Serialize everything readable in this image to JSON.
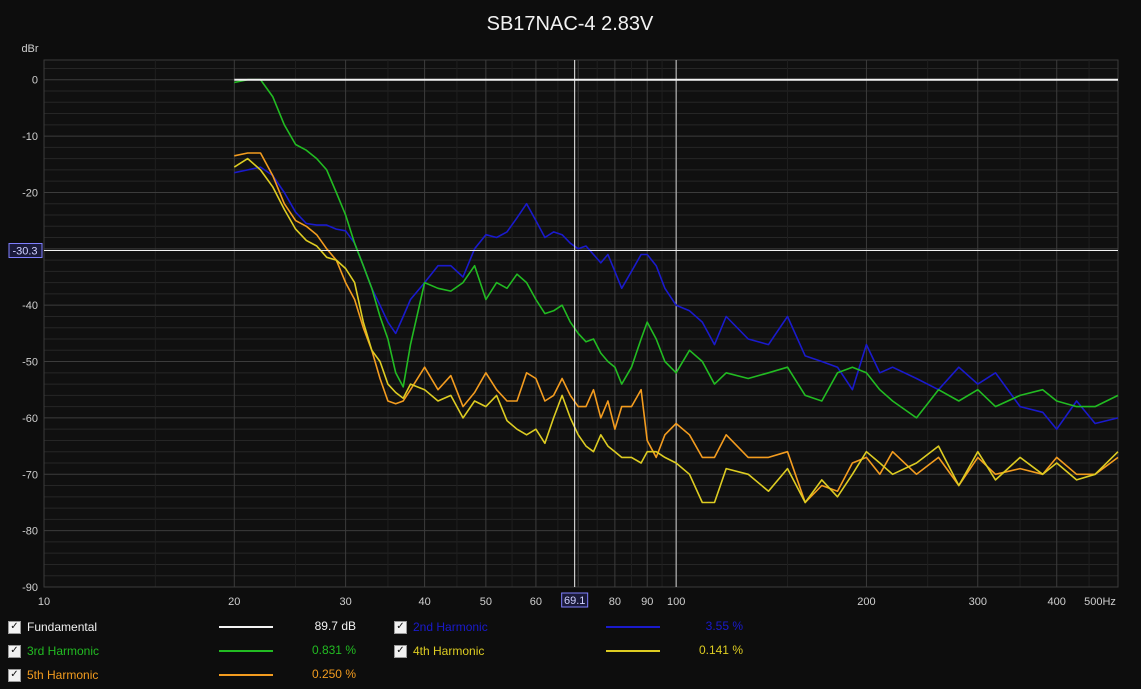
{
  "chart_data": {
    "type": "line",
    "title": "SB17NAC-4 2.83V",
    "ylabel": "dBr",
    "xscale": "log",
    "xlim": [
      10,
      500
    ],
    "ylim": [
      -90,
      10
    ],
    "x_ticks": [
      10,
      20,
      30,
      40,
      50,
      60,
      70,
      80,
      90,
      100,
      200,
      300,
      400,
      500
    ],
    "x_tick_labels": [
      "10",
      "20",
      "30",
      "40",
      "50",
      "60",
      "",
      "80",
      "90",
      "100",
      "200",
      "300",
      "400",
      "500Hz"
    ],
    "y_ticks": [
      0,
      -10,
      -20,
      -30,
      -40,
      -50,
      -60,
      -70,
      -80,
      -90
    ],
    "y_tick_labels": [
      "0",
      "-10",
      "-20",
      "-30",
      "-40",
      "-50",
      "-60",
      "-70",
      "-80",
      "-90"
    ],
    "grid": true,
    "cursor": {
      "x": 69.1,
      "y": -30.3,
      "x_label": "69.1",
      "y_label": "-30.3"
    },
    "vertical_marker_x": 100,
    "series": [
      {
        "name": "Fundamental",
        "color": "#f2f2f2",
        "legend_value": "89.7 dB",
        "x": [
          20,
          21,
          22,
          25,
          30,
          50,
          100,
          200,
          300,
          400,
          500
        ],
        "y": [
          0,
          0,
          0,
          0,
          0,
          0,
          0,
          0,
          0,
          0,
          0
        ]
      },
      {
        "name": "2nd Harmonic",
        "color": "#1a1acc",
        "legend_value": "3.55 %",
        "x": [
          20,
          21,
          22,
          23,
          24,
          25,
          26,
          27,
          28,
          29,
          30,
          31,
          32,
          33,
          34,
          35,
          36,
          37,
          38,
          40,
          42,
          44,
          46,
          48,
          50,
          52,
          54,
          56,
          58,
          60,
          62,
          64,
          66,
          68,
          70,
          72,
          74,
          76,
          78,
          80,
          82,
          85,
          88,
          90,
          93,
          96,
          100,
          105,
          110,
          115,
          120,
          130,
          140,
          150,
          160,
          170,
          180,
          190,
          200,
          210,
          220,
          240,
          260,
          280,
          300,
          320,
          350,
          380,
          400,
          430,
          460,
          500
        ],
        "y": [
          -16.5,
          -16,
          -15.5,
          -17,
          -20,
          -23.5,
          -25.5,
          -25.8,
          -25.8,
          -26.5,
          -26.8,
          -29,
          -33,
          -37,
          -40,
          -43,
          -45,
          -42,
          -39,
          -36,
          -33,
          -33,
          -35,
          -30,
          -27.5,
          -28,
          -27,
          -24.5,
          -22,
          -25,
          -28,
          -27,
          -27.5,
          -29,
          -30,
          -29.5,
          -31,
          -32.5,
          -31,
          -34,
          -37,
          -34,
          -31,
          -31,
          -33,
          -37,
          -40,
          -41,
          -43,
          -47,
          -42,
          -46,
          -47,
          -42,
          -49,
          -50,
          -51,
          -55,
          -47,
          -52,
          -51,
          -53,
          -55,
          -51,
          -54,
          -52,
          -58,
          -59,
          -62,
          -57,
          -61,
          -60
        ]
      },
      {
        "name": "3rd Harmonic",
        "color": "#22bb22",
        "legend_value": "0.831 %",
        "x": [
          20,
          21,
          22,
          23,
          24,
          25,
          26,
          27,
          28,
          29,
          30,
          31,
          32,
          33,
          34,
          35,
          36,
          37,
          38,
          40,
          42,
          44,
          46,
          48,
          50,
          52,
          54,
          56,
          58,
          60,
          62,
          64,
          66,
          68,
          70,
          72,
          74,
          76,
          78,
          80,
          82,
          85,
          88,
          90,
          93,
          96,
          100,
          105,
          110,
          115,
          120,
          130,
          140,
          150,
          160,
          170,
          180,
          190,
          200,
          210,
          220,
          240,
          260,
          280,
          300,
          320,
          350,
          380,
          400,
          430,
          460,
          500
        ],
        "y": [
          -0.5,
          0,
          0,
          -3,
          -8,
          -11.5,
          -12.5,
          -14,
          -16,
          -20,
          -24,
          -29,
          -33,
          -37,
          -42,
          -46,
          -52,
          -54.5,
          -47,
          -36,
          -37,
          -37.5,
          -36,
          -33,
          -39,
          -36,
          -37,
          -34.5,
          -36,
          -39,
          -41.5,
          -41,
          -40,
          -43,
          -45,
          -46.5,
          -46,
          -48.5,
          -50,
          -51,
          -54,
          -51,
          -46,
          -43,
          -46,
          -50,
          -52,
          -48,
          -50,
          -54,
          -52,
          -53,
          -52,
          -51,
          -56,
          -57,
          -52,
          -51,
          -52,
          -55,
          -57,
          -60,
          -55,
          -57,
          -55,
          -58,
          -56,
          -55,
          -57,
          -58,
          -58,
          -56
        ]
      },
      {
        "name": "4th Harmonic",
        "color": "#ddcc22",
        "legend_value": "0.141 %",
        "x": [
          20,
          21,
          22,
          23,
          24,
          25,
          26,
          27,
          28,
          29,
          30,
          31,
          32,
          33,
          34,
          35,
          36,
          37,
          38,
          40,
          42,
          44,
          46,
          48,
          50,
          52,
          54,
          56,
          58,
          60,
          62,
          64,
          66,
          68,
          70,
          72,
          74,
          76,
          78,
          80,
          82,
          85,
          88,
          90,
          93,
          96,
          100,
          105,
          110,
          115,
          120,
          130,
          140,
          150,
          160,
          170,
          180,
          190,
          200,
          210,
          220,
          240,
          260,
          280,
          300,
          320,
          350,
          380,
          400,
          430,
          460,
          500
        ],
        "y": [
          -15.5,
          -14,
          -16,
          -19,
          -23,
          -26.5,
          -28.5,
          -29.5,
          -31.5,
          -32,
          -33.5,
          -36,
          -43,
          -48,
          -50,
          -54,
          -55.5,
          -56.5,
          -54,
          -55,
          -57,
          -56,
          -60,
          -57,
          -58,
          -56,
          -60.5,
          -62,
          -63,
          -62,
          -64.5,
          -60,
          -56,
          -60,
          -63,
          -65,
          -66,
          -63,
          -65,
          -66,
          -67,
          -67,
          -68,
          -66,
          -66,
          -67,
          -68,
          -70,
          -75,
          -75,
          -69,
          -70,
          -73,
          -69,
          -75,
          -71,
          -74,
          -70,
          -66,
          -68,
          -70,
          -68,
          -65,
          -72,
          -66,
          -71,
          -67,
          -70,
          -68,
          -71,
          -70,
          -66
        ]
      },
      {
        "name": "5th Harmonic",
        "color": "#f39c1f",
        "legend_value": "0.250 %",
        "x": [
          20,
          21,
          22,
          23,
          24,
          25,
          26,
          27,
          28,
          29,
          30,
          31,
          32,
          33,
          34,
          35,
          36,
          37,
          38,
          40,
          42,
          44,
          46,
          48,
          50,
          52,
          54,
          56,
          58,
          60,
          62,
          64,
          66,
          68,
          70,
          72,
          74,
          76,
          78,
          80,
          82,
          85,
          88,
          90,
          93,
          96,
          100,
          105,
          110,
          115,
          120,
          130,
          140,
          150,
          160,
          170,
          180,
          190,
          200,
          210,
          220,
          240,
          260,
          280,
          300,
          320,
          350,
          380,
          400,
          430,
          460,
          500
        ],
        "y": [
          -13.5,
          -13,
          -13,
          -17,
          -22,
          -25,
          -26,
          -27.5,
          -30,
          -32,
          -36,
          -39,
          -44,
          -48,
          -53,
          -57,
          -57.5,
          -57,
          -55,
          -51,
          -55,
          -52.5,
          -58,
          -55.5,
          -52,
          -55,
          -57,
          -57,
          -52,
          -53,
          -57,
          -56,
          -53,
          -56,
          -58,
          -58,
          -55,
          -60,
          -57,
          -62,
          -58,
          -58,
          -55,
          -64,
          -67,
          -63,
          -61,
          -63,
          -67,
          -67,
          -63,
          -67,
          -67,
          -66,
          -75,
          -72,
          -73,
          -68,
          -67,
          -70,
          -66,
          -70,
          -67,
          -72,
          -67,
          -70,
          -69,
          -70,
          -67,
          -70,
          -70,
          -67
        ]
      }
    ]
  },
  "legend": {
    "items": [
      {
        "label": "Fundamental",
        "value": "89.7 dB",
        "color": "#f2f2f2",
        "checked": "✓"
      },
      {
        "label": "2nd Harmonic",
        "value": "3.55 %",
        "color": "#1a1acc",
        "checked": "✓"
      },
      {
        "label": "3rd Harmonic",
        "value": "0.831 %",
        "color": "#22bb22",
        "checked": "✓"
      },
      {
        "label": "4th Harmonic",
        "value": "0.141 %",
        "color": "#ddcc22",
        "checked": "✓"
      },
      {
        "label": "5th Harmonic",
        "value": "0.250 %",
        "color": "#f39c1f",
        "checked": "✓"
      }
    ]
  }
}
